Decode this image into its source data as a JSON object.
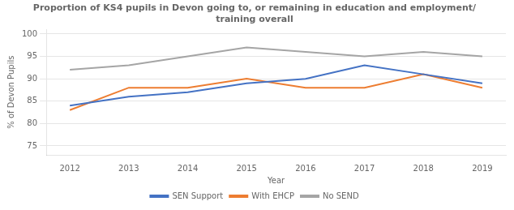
{
  "chart_data": {
    "type": "line",
    "title": "Proportion of KS4 pupils in Devon going to, or remaining in education and employment/\ntraining overall",
    "xlabel": "Year",
    "ylabel": "% of Devon Pupils",
    "x": [
      2012,
      2013,
      2014,
      2015,
      2016,
      2017,
      2018,
      2019
    ],
    "series": [
      {
        "name": "SEN Support",
        "color": "#4472C4",
        "values": [
          84,
          86,
          87,
          89,
          90,
          93,
          91,
          89
        ]
      },
      {
        "name": "With EHCP",
        "color": "#ED7D31",
        "values": [
          83,
          88,
          88,
          90,
          88,
          88,
          91,
          88
        ]
      },
      {
        "name": "No SEND",
        "color": "#A5A5A5",
        "values": [
          92,
          93,
          95,
          97,
          96,
          95,
          96,
          95
        ]
      }
    ],
    "xlim": [
      2011.6,
      2019.4
    ],
    "xticks": [
      2012,
      2013,
      2014,
      2015,
      2016,
      2017,
      2018,
      2019
    ],
    "ylim": [
      73,
      101
    ],
    "yticks": [
      75,
      80,
      85,
      90,
      95,
      100
    ],
    "grid": true,
    "legend": "bottom"
  }
}
